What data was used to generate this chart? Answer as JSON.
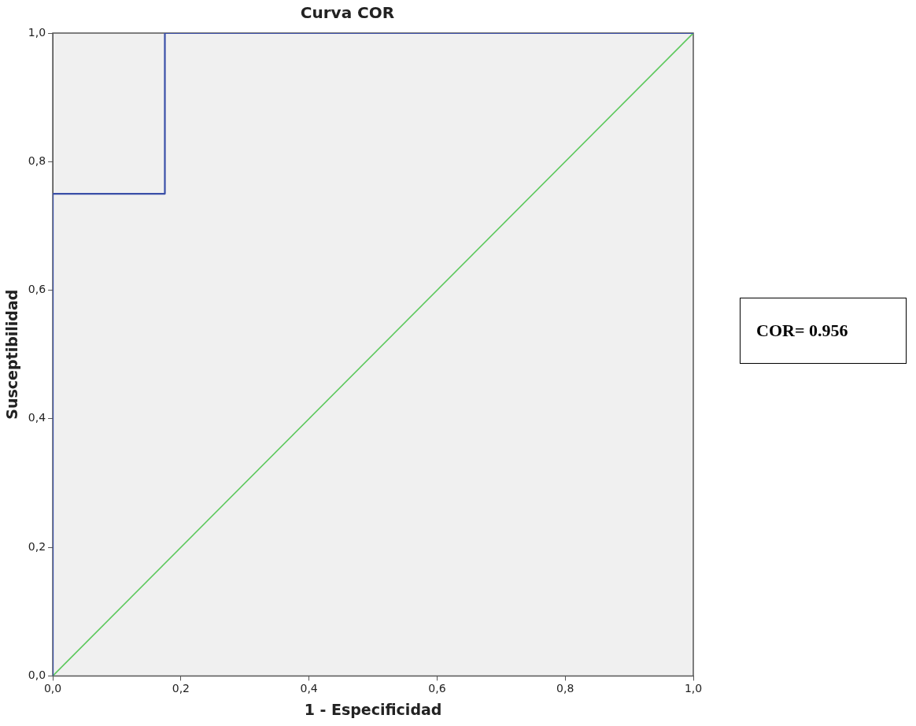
{
  "chart_data": {
    "type": "line",
    "title": "Curva COR",
    "xlabel": "1 - Especificidad",
    "ylabel": "Susceptibilidad",
    "series": [
      {
        "type": "line",
        "color": "#3a4fa8",
        "x": [
          0,
          0,
          0.175,
          0.175,
          1
        ],
        "values": [
          0,
          0.75,
          0.75,
          1,
          1
        ]
      },
      {
        "type": "line",
        "color": "#5cc85c",
        "x": [
          0,
          1
        ],
        "values": [
          0,
          1
        ]
      }
    ],
    "xlim": [
      0,
      1
    ],
    "ylim": [
      0,
      1
    ],
    "xticks": [
      {
        "value": 0,
        "label": "0,0"
      },
      {
        "value": 0.2,
        "label": "0,2"
      },
      {
        "value": 0.4,
        "label": "0,4"
      },
      {
        "value": 0.6,
        "label": "0,6"
      },
      {
        "value": 0.8,
        "label": "0,8"
      },
      {
        "value": 1,
        "label": "1,0"
      }
    ],
    "yticks": [
      {
        "value": 0,
        "label": "0,0"
      },
      {
        "value": 0.2,
        "label": "0,2"
      },
      {
        "value": 0.4,
        "label": "0,4"
      },
      {
        "value": 0.6,
        "label": "0,6"
      },
      {
        "value": 0.8,
        "label": "0,8"
      },
      {
        "value": 1,
        "label": "1,0"
      }
    ],
    "grid": false,
    "legend": false,
    "marker": "none",
    "line_style": "solid",
    "annotations": [
      "COR= 0.956"
    ]
  }
}
